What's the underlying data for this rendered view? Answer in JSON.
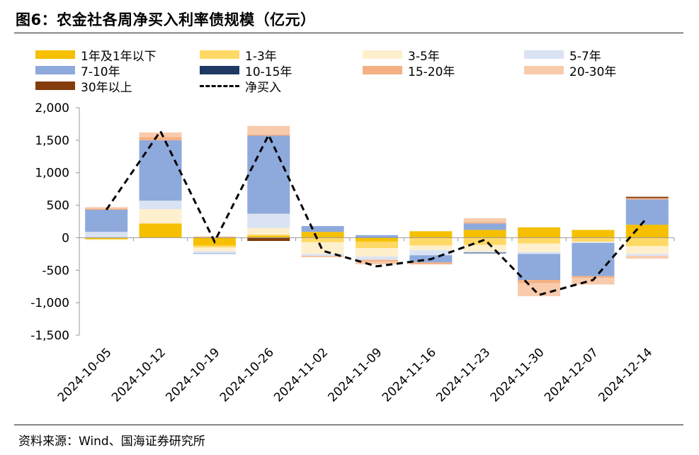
{
  "title": "图6：农金社各周净买入利率债规模（亿元）",
  "source": "资料来源：Wind、国海证券研究所",
  "chart_data": {
    "type": "bar",
    "stacked": true,
    "categories": [
      "2024-10-05",
      "2024-10-12",
      "2024-10-19",
      "2024-10-26",
      "2024-11-02",
      "2024-11-09",
      "2024-11-16",
      "2024-11-23",
      "2024-11-30",
      "2024-12-07",
      "2024-12-14"
    ],
    "ylim": [
      -1500,
      2000
    ],
    "yticks": [
      -1500,
      -1000,
      -500,
      0,
      500,
      1000,
      1500,
      2000
    ],
    "ytick_labels": [
      "-1,500",
      "-1,000",
      "-500",
      "0",
      "500",
      "1,000",
      "1,500",
      "2,000"
    ],
    "series": [
      {
        "name": "1年及1年以下",
        "color": "#F6C000",
        "values": [
          -20,
          220,
          -120,
          30,
          90,
          -60,
          100,
          120,
          160,
          120,
          200
        ]
      },
      {
        "name": "1-3年",
        "color": "#FFD966",
        "values": [
          -10,
          0,
          -30,
          20,
          -70,
          -100,
          -120,
          -110,
          -90,
          -60,
          -130
        ]
      },
      {
        "name": "3-5年",
        "color": "#FEF0CD",
        "values": [
          -10,
          220,
          -60,
          100,
          -180,
          -130,
          -70,
          -100,
          -130,
          -10,
          -120
        ]
      },
      {
        "name": "5-7年",
        "color": "#DAE3F3",
        "values": [
          90,
          130,
          -30,
          220,
          -30,
          -50,
          -80,
          -20,
          -30,
          -10,
          -30
        ]
      },
      {
        "name": "7-10年",
        "color": "#8EA9DB",
        "values": [
          340,
          930,
          -10,
          1200,
          90,
          40,
          -110,
          100,
          -400,
          -510,
          390
        ]
      },
      {
        "name": "10-15年",
        "color": "#1F3864",
        "values": [
          0,
          0,
          0,
          0,
          0,
          0,
          0,
          -10,
          0,
          0,
          0
        ]
      },
      {
        "name": "15-20年",
        "color": "#F4B183",
        "values": [
          20,
          50,
          10,
          20,
          -10,
          -30,
          -30,
          20,
          -50,
          -30,
          20
        ]
      },
      {
        "name": "20-30年",
        "color": "#F8CBAD",
        "values": [
          20,
          70,
          10,
          130,
          -10,
          -40,
          0,
          60,
          -200,
          -100,
          -40
        ]
      },
      {
        "name": "30年以上",
        "color": "#843C0C",
        "values": [
          0,
          0,
          0,
          -50,
          0,
          0,
          0,
          0,
          0,
          0,
          20
        ]
      }
    ],
    "line": {
      "name": "净买入",
      "color": "#000000",
      "values": [
        430,
        1640,
        -60,
        1580,
        -200,
        -440,
        -330,
        -30,
        -880,
        -650,
        310
      ]
    },
    "legend_position": "top",
    "grid": false
  }
}
